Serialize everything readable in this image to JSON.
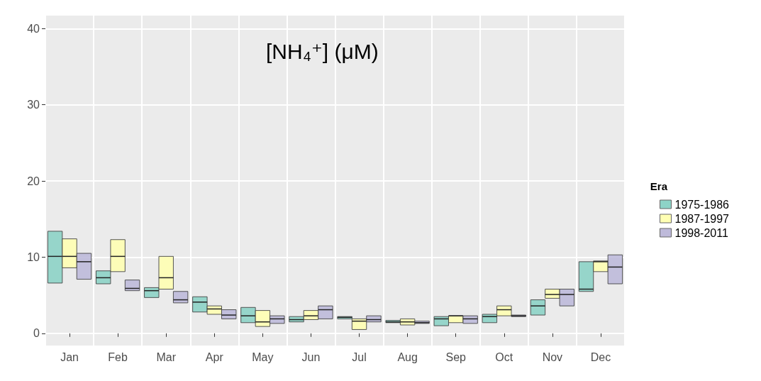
{
  "chart_data": {
    "type": "box",
    "title": "[NH₄⁺] (μM)",
    "legend_title": "Era",
    "categories": [
      "Jan",
      "Feb",
      "Mar",
      "Apr",
      "May",
      "Jun",
      "Jul",
      "Aug",
      "Sep",
      "Oct",
      "Nov",
      "Dec"
    ],
    "ylim": [
      -1.6,
      41.7
    ],
    "yticks": [
      0,
      10,
      20,
      30,
      40
    ],
    "grid": true,
    "legend": "right",
    "series": [
      {
        "name": "1975-1986",
        "color": "#8dd3c7",
        "boxes": [
          {
            "low": 6.6,
            "q1": 6.6,
            "median": 10.1,
            "q3": 13.4,
            "high": 13.4
          },
          {
            "low": 6.5,
            "q1": 6.5,
            "median": 7.3,
            "q3": 8.2,
            "high": 8.2
          },
          {
            "low": 4.7,
            "q1": 4.7,
            "median": 5.6,
            "q3": 6.0,
            "high": 6.0
          },
          {
            "low": 2.8,
            "q1": 2.8,
            "median": 4.1,
            "q3": 4.8,
            "high": 4.8
          },
          {
            "low": 1.4,
            "q1": 1.4,
            "median": 2.3,
            "q3": 3.4,
            "high": 3.4
          },
          {
            "low": 1.5,
            "q1": 1.5,
            "median": 1.8,
            "q3": 2.2,
            "high": 2.2
          },
          {
            "low": 1.9,
            "q1": 1.9,
            "median": 2.1,
            "q3": 2.2,
            "high": 2.2
          },
          {
            "low": 1.4,
            "q1": 1.4,
            "median": 1.5,
            "q3": 1.7,
            "high": 1.7
          },
          {
            "low": 1.0,
            "q1": 1.0,
            "median": 1.9,
            "q3": 2.2,
            "high": 2.2
          },
          {
            "low": 1.4,
            "q1": 1.4,
            "median": 2.2,
            "q3": 2.5,
            "high": 2.5
          },
          {
            "low": 2.4,
            "q1": 2.4,
            "median": 3.6,
            "q3": 4.4,
            "high": 4.4
          },
          {
            "low": 5.5,
            "q1": 5.5,
            "median": 5.8,
            "q3": 9.4,
            "high": 9.4
          }
        ]
      },
      {
        "name": "1987-1997",
        "color": "#ffffb3",
        "boxes": [
          {
            "low": 8.6,
            "q1": 8.6,
            "median": 10.1,
            "q3": 12.4,
            "high": 12.4
          },
          {
            "low": 8.1,
            "q1": 8.1,
            "median": 10.1,
            "q3": 12.3,
            "high": 12.3
          },
          {
            "low": 5.8,
            "q1": 5.8,
            "median": 7.3,
            "q3": 10.1,
            "high": 10.1
          },
          {
            "low": 2.5,
            "q1": 2.5,
            "median": 3.2,
            "q3": 3.6,
            "high": 3.6
          },
          {
            "low": 0.9,
            "q1": 0.9,
            "median": 1.5,
            "q3": 3.0,
            "high": 3.0
          },
          {
            "low": 1.8,
            "q1": 1.8,
            "median": 2.3,
            "q3": 3.0,
            "high": 3.0
          },
          {
            "low": 0.5,
            "q1": 0.5,
            "median": 1.6,
            "q3": 1.9,
            "high": 1.9
          },
          {
            "low": 1.1,
            "q1": 1.1,
            "median": 1.5,
            "q3": 1.9,
            "high": 1.9
          },
          {
            "low": 1.4,
            "q1": 1.4,
            "median": 2.3,
            "q3": 2.3,
            "high": 2.3
          },
          {
            "low": 2.3,
            "q1": 2.3,
            "median": 3.1,
            "q3": 3.6,
            "high": 3.6
          },
          {
            "low": 4.6,
            "q1": 4.6,
            "median": 5.1,
            "q3": 5.8,
            "high": 5.8
          },
          {
            "low": 8.1,
            "q1": 8.1,
            "median": 9.4,
            "q3": 9.5,
            "high": 9.5
          }
        ]
      },
      {
        "name": "1998-2011",
        "color": "#bebada",
        "boxes": [
          {
            "low": 7.1,
            "q1": 7.1,
            "median": 9.4,
            "q3": 10.5,
            "high": 10.5
          },
          {
            "low": 5.6,
            "q1": 5.6,
            "median": 5.9,
            "q3": 7.0,
            "high": 7.0
          },
          {
            "low": 4.0,
            "q1": 4.0,
            "median": 4.4,
            "q3": 5.5,
            "high": 5.5
          },
          {
            "low": 1.9,
            "q1": 1.9,
            "median": 2.4,
            "q3": 3.1,
            "high": 3.1
          },
          {
            "low": 1.3,
            "q1": 1.3,
            "median": 1.9,
            "q3": 2.3,
            "high": 2.3
          },
          {
            "low": 1.9,
            "q1": 1.9,
            "median": 3.1,
            "q3": 3.6,
            "high": 3.6
          },
          {
            "low": 1.5,
            "q1": 1.5,
            "median": 1.8,
            "q3": 2.3,
            "high": 2.3
          },
          {
            "low": 1.3,
            "q1": 1.3,
            "median": 1.4,
            "q3": 1.6,
            "high": 1.6
          },
          {
            "low": 1.3,
            "q1": 1.3,
            "median": 1.9,
            "q3": 2.3,
            "high": 2.3
          },
          {
            "low": 2.2,
            "q1": 2.2,
            "median": 2.3,
            "q3": 2.4,
            "high": 2.4
          },
          {
            "low": 3.6,
            "q1": 3.6,
            "median": 5.1,
            "q3": 5.8,
            "high": 5.8
          },
          {
            "low": 6.5,
            "q1": 6.5,
            "median": 8.7,
            "q3": 10.3,
            "high": 10.3
          }
        ]
      }
    ]
  }
}
